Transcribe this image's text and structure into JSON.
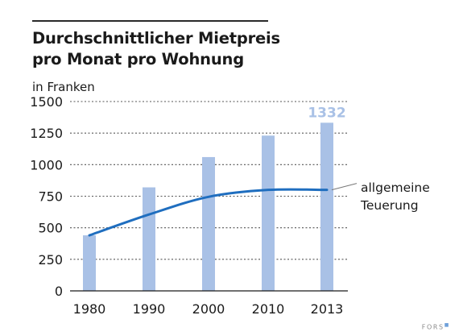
{
  "chart_data": {
    "type": "bar",
    "title": "Durchschnittlicher Mietpreis pro Monat pro Wohnung",
    "title_lines": [
      "Durchschnittlicher Mietpreis",
      "pro Monat pro Wohnung"
    ],
    "unit_label": "in Franken",
    "categories": [
      "1980",
      "1990",
      "2000",
      "2010",
      "2013"
    ],
    "series": [
      {
        "type": "bar",
        "values": [
          440,
          820,
          1060,
          1230,
          1332
        ],
        "color": "#a9c1e6"
      },
      {
        "name": "allgemeine Teuerung",
        "name_lines": [
          "allgemeine",
          "Teuerung"
        ],
        "type": "line",
        "values": [
          440,
          605,
          745,
          800,
          800
        ],
        "color": "#1f6ebf"
      }
    ],
    "highlight_label": "1332",
    "highlight_color": "#a9c1e6",
    "y_ticks": [
      0,
      250,
      500,
      750,
      1000,
      1250,
      1500
    ],
    "ylim": [
      0,
      1500
    ],
    "grid": true,
    "grid_style": "dotted"
  },
  "credit": "FORS"
}
